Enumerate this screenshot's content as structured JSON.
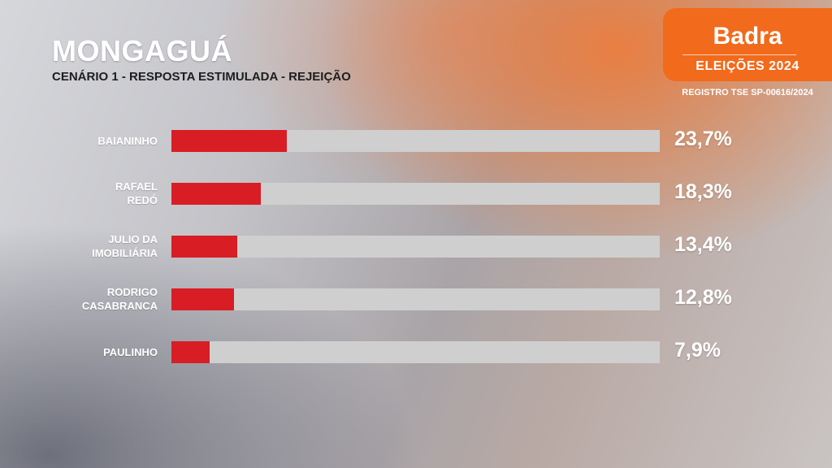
{
  "header": {
    "title": "MONGAGUÁ",
    "subtitle": "CENÁRIO 1 - RESPOSTA ESTIMULADA - REJEIÇÃO"
  },
  "brand": {
    "name": "Badra",
    "subtitle": "ELEIÇÕES 2024",
    "registro": "REGISTRO TSE SP-00616/2024",
    "color": "#f26a1b"
  },
  "colors": {
    "bar": "#d81d25",
    "track": "#cfcfcf"
  },
  "chart_data": {
    "type": "bar",
    "orientation": "horizontal",
    "title": "CENÁRIO 1 - RESPOSTA ESTIMULADA - REJEIÇÃO",
    "categories": [
      "BAIANINHO",
      "RAFAEL\nREDÓ",
      "JULIO DA\nIMOBILIÁRIA",
      "RODRIGO\nCASABRANCA",
      "PAULINHO"
    ],
    "values": [
      23.7,
      18.3,
      13.4,
      12.8,
      7.9
    ],
    "value_labels": [
      "23,7%",
      "18,3%",
      "13,4%",
      "12,8%",
      "7,9%"
    ],
    "xlim": [
      0,
      100
    ],
    "unit": "%"
  }
}
